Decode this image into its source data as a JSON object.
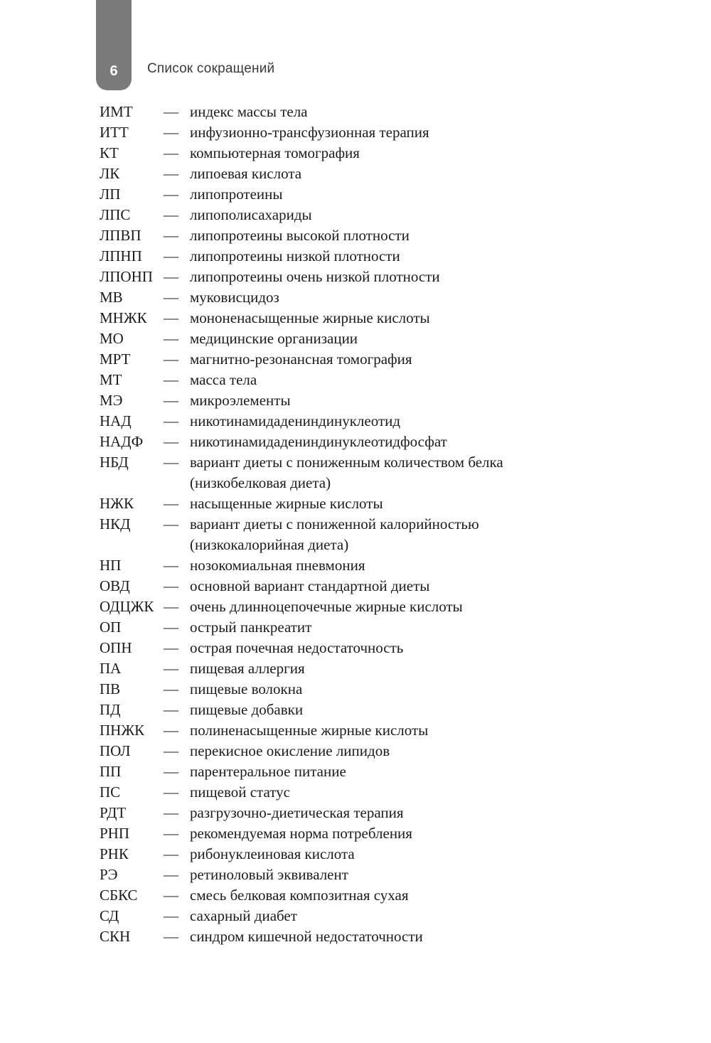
{
  "page": {
    "number": "6",
    "header": "Список сокращений"
  },
  "colors": {
    "tab_background": "#7a7a7a",
    "tab_number": "#ffffff",
    "header_text": "#3a3a3a",
    "body_text": "#1c1c1c"
  },
  "separator": "—",
  "abbreviations": [
    {
      "abbr": "ИМТ",
      "dash": "—",
      "definition": "индекс массы тела"
    },
    {
      "abbr": "ИТТ",
      "dash": "—",
      "definition": "инфузионно-трансфузионная терапия"
    },
    {
      "abbr": "КТ",
      "dash": "—",
      "definition": "компьютерная томография"
    },
    {
      "abbr": "ЛК",
      "dash": "—",
      "definition": "липоевая кислота"
    },
    {
      "abbr": "ЛП",
      "dash": "—",
      "definition": "липопротеины"
    },
    {
      "abbr": "ЛПС",
      "dash": "—",
      "definition": "липополисахариды"
    },
    {
      "abbr": "ЛПВП",
      "dash": "—",
      "definition": "липопротеины высокой плотности"
    },
    {
      "abbr": "ЛПНП",
      "dash": "—",
      "definition": "липопротеины низкой плотности"
    },
    {
      "abbr": "ЛПОНП",
      "dash": "—",
      "definition": "липопротеины очень низкой плотности"
    },
    {
      "abbr": "МВ",
      "dash": "—",
      "definition": "муковисцидоз"
    },
    {
      "abbr": "МНЖК",
      "dash": "—",
      "definition": "мононенасыщенные жирные кислоты"
    },
    {
      "abbr": "МО",
      "dash": "—",
      "definition": "медицинские организации"
    },
    {
      "abbr": "МРТ",
      "dash": "—",
      "definition": "магнитно-резонансная томография"
    },
    {
      "abbr": "МТ",
      "dash": "—",
      "definition": "масса тела"
    },
    {
      "abbr": "МЭ",
      "dash": "—",
      "definition": "микроэлементы"
    },
    {
      "abbr": "НАД",
      "dash": "—",
      "definition": "никотинамидадениндинуклеотид"
    },
    {
      "abbr": "НАДФ",
      "dash": "—",
      "definition": "никотинамидадениндинуклеотидфосфат"
    },
    {
      "abbr": "НБД",
      "dash": "—",
      "definition": "вариант диеты с пониженным количеством белка\n(низкобелковая диета)"
    },
    {
      "abbr": "НЖК",
      "dash": "—",
      "definition": "насыщенные жирные кислоты"
    },
    {
      "abbr": "НКД",
      "dash": "—",
      "definition": "вариант диеты с пониженной калорийностью\n(низкокалорийная диета)"
    },
    {
      "abbr": "НП",
      "dash": "—",
      "definition": "нозокомиальная пневмония"
    },
    {
      "abbr": "ОВД",
      "dash": "—",
      "definition": "основной вариант стандартной диеты"
    },
    {
      "abbr": "ОДЦЖК",
      "dash": "—",
      "definition": "очень длинноцепочечные жирные кислоты"
    },
    {
      "abbr": "ОП",
      "dash": "—",
      "definition": "острый панкреатит"
    },
    {
      "abbr": "ОПН",
      "dash": "—",
      "definition": "острая почечная недостаточность"
    },
    {
      "abbr": "ПА",
      "dash": "—",
      "definition": "пищевая аллергия"
    },
    {
      "abbr": "ПВ",
      "dash": "—",
      "definition": "пищевые волокна"
    },
    {
      "abbr": "ПД",
      "dash": "—",
      "definition": "пищевые добавки"
    },
    {
      "abbr": "ПНЖК",
      "dash": "—",
      "definition": "полиненасыщенные жирные кислоты"
    },
    {
      "abbr": "ПОЛ",
      "dash": "—",
      "definition": "перекисное окисление липидов"
    },
    {
      "abbr": "ПП",
      "dash": "—",
      "definition": "парентеральное питание"
    },
    {
      "abbr": "ПС",
      "dash": "—",
      "definition": "пищевой статус"
    },
    {
      "abbr": "РДТ",
      "dash": "—",
      "definition": "разгрузочно-диетическая терапия"
    },
    {
      "abbr": "РНП",
      "dash": "—",
      "definition": "рекомендуемая норма потребления"
    },
    {
      "abbr": "РНК",
      "dash": "—",
      "definition": "рибонуклеиновая кислота"
    },
    {
      "abbr": "РЭ",
      "dash": "—",
      "definition": "ретиноловый эквивалент"
    },
    {
      "abbr": "СБКС",
      "dash": "—",
      "definition": "смесь белковая композитная сухая"
    },
    {
      "abbr": "СД",
      "dash": "—",
      "definition": "сахарный диабет"
    },
    {
      "abbr": "СКН",
      "dash": "—",
      "definition": "синдром кишечной недостаточности"
    }
  ]
}
